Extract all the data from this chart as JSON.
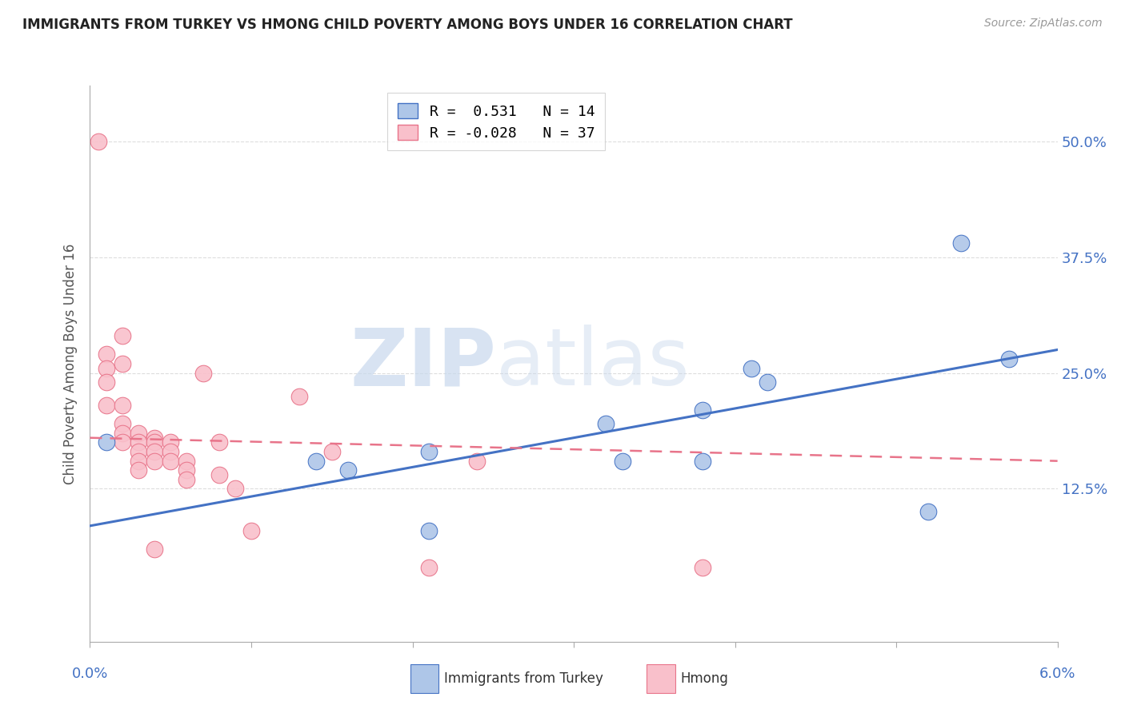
{
  "title": "IMMIGRANTS FROM TURKEY VS HMONG CHILD POVERTY AMONG BOYS UNDER 16 CORRELATION CHART",
  "source": "Source: ZipAtlas.com",
  "ylabel": "Child Poverty Among Boys Under 16",
  "yticks": [
    0.0,
    0.125,
    0.25,
    0.375,
    0.5
  ],
  "ytick_labels": [
    "",
    "12.5%",
    "25.0%",
    "37.5%",
    "50.0%"
  ],
  "xlim": [
    0.0,
    0.06
  ],
  "ylim": [
    -0.04,
    0.56
  ],
  "legend_r1": "R =  0.531",
  "legend_n1": "N = 14",
  "legend_r2": "R = -0.028",
  "legend_n2": "N = 37",
  "watermark_zip": "ZIP",
  "watermark_atlas": "atlas",
  "blue_color": "#AEC6E8",
  "blue_edge_color": "#4472C4",
  "pink_color": "#F9C0CB",
  "pink_edge_color": "#E8748A",
  "blue_line_color": "#4472C4",
  "pink_line_color": "#E8748A",
  "blue_scatter_x": [
    0.001,
    0.014,
    0.016,
    0.021,
    0.021,
    0.032,
    0.033,
    0.038,
    0.038,
    0.041,
    0.042,
    0.052,
    0.054,
    0.057
  ],
  "blue_scatter_y": [
    0.175,
    0.155,
    0.145,
    0.165,
    0.08,
    0.195,
    0.155,
    0.21,
    0.155,
    0.255,
    0.24,
    0.1,
    0.39,
    0.265
  ],
  "pink_scatter_x": [
    0.0005,
    0.001,
    0.001,
    0.001,
    0.001,
    0.002,
    0.002,
    0.002,
    0.002,
    0.002,
    0.002,
    0.003,
    0.003,
    0.003,
    0.003,
    0.003,
    0.004,
    0.004,
    0.004,
    0.004,
    0.004,
    0.005,
    0.005,
    0.005,
    0.006,
    0.006,
    0.006,
    0.007,
    0.008,
    0.008,
    0.009,
    0.01,
    0.013,
    0.015,
    0.021,
    0.024,
    0.038
  ],
  "pink_scatter_y": [
    0.5,
    0.27,
    0.255,
    0.24,
    0.215,
    0.29,
    0.26,
    0.215,
    0.195,
    0.185,
    0.175,
    0.185,
    0.175,
    0.165,
    0.155,
    0.145,
    0.18,
    0.175,
    0.165,
    0.155,
    0.06,
    0.175,
    0.165,
    0.155,
    0.155,
    0.145,
    0.135,
    0.25,
    0.175,
    0.14,
    0.125,
    0.08,
    0.225,
    0.165,
    0.04,
    0.155,
    0.04
  ],
  "blue_line_x": [
    0.0,
    0.06
  ],
  "blue_line_y": [
    0.085,
    0.275
  ],
  "pink_line_x": [
    0.0,
    0.06
  ],
  "pink_line_y": [
    0.18,
    0.155
  ],
  "xtick_positions": [
    0.0,
    0.01,
    0.02,
    0.03,
    0.04,
    0.05,
    0.06
  ],
  "title_color": "#222222",
  "axis_label_color": "#555555",
  "tick_color": "#4472C4",
  "grid_color": "#DDDDDD",
  "spine_color": "#AAAAAA"
}
